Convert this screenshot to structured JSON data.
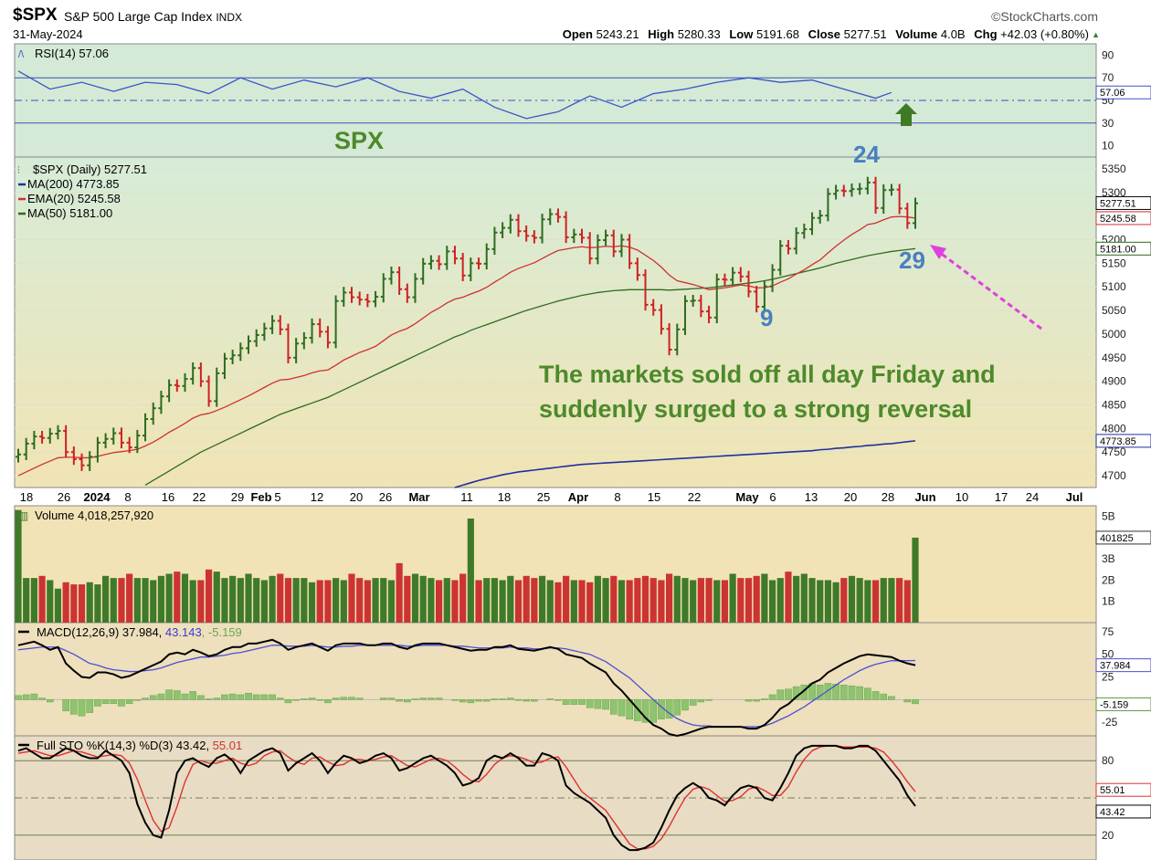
{
  "header": {
    "symbol": "$SPX",
    "name": "S&P 500 Large Cap Index",
    "exchange": "INDX",
    "date": "31-May-2024",
    "brand": "©StockCharts.com",
    "open_label": "Open",
    "open": "5243.21",
    "high_label": "High",
    "high": "5280.33",
    "low_label": "Low",
    "low": "5191.68",
    "close_label": "Close",
    "close": "5277.51",
    "volume_label": "Volume",
    "volume": "4.0B",
    "chg_label": "Chg",
    "chg": "+42.03 (+0.80%)"
  },
  "annotations": {
    "spx": "SPX",
    "n24": "24",
    "n29": "29",
    "n9": "9",
    "text_line1": "The markets sold off all day Friday and",
    "text_line2": "suddenly surged to a strong reversal"
  },
  "colors": {
    "up_bar": "#2e6b1f",
    "down_bar": "#cc2222",
    "ma200": "#1f2fa0",
    "ema20": "#d03030",
    "ma50": "#2e6b1f",
    "rsi": "#3a55c8",
    "annotation_green": "#4d8a2a",
    "annotation_blue": "#4a7fc0",
    "arrow_pink": "#e040e0"
  },
  "chart_data": [
    {
      "panel": "rsi",
      "type": "line",
      "legend": "RSI(14) 57.06",
      "last_label": "57.06",
      "ticks": [
        "90",
        "70",
        "50",
        "30",
        "10"
      ],
      "ylim": [
        0,
        100
      ],
      "levels": [
        70,
        30
      ],
      "x": [
        0,
        4,
        8,
        12,
        16,
        20,
        24,
        28,
        32,
        36,
        40,
        44,
        48,
        52,
        56,
        60,
        64,
        68,
        72,
        76,
        80,
        84,
        88,
        92,
        96,
        100,
        104,
        108,
        110
      ],
      "values": [
        76,
        60,
        66,
        58,
        66,
        64,
        56,
        70,
        60,
        68,
        62,
        70,
        58,
        52,
        60,
        44,
        34,
        40,
        54,
        44,
        56,
        60,
        66,
        70,
        66,
        68,
        60,
        52,
        57
      ]
    },
    {
      "panel": "price",
      "type": "candlestick",
      "legend": [
        "$SPX (Daily) 5277.51",
        "MA(200) 4773.85",
        "EMA(20) 5245.58",
        "MA(50) 5181.00"
      ],
      "ticks": [
        "5350",
        "5300",
        "5250",
        "5200",
        "5150",
        "5100",
        "5050",
        "5000",
        "4950",
        "4900",
        "4850",
        "4800",
        "4750",
        "4700"
      ],
      "ylim": [
        4675,
        5375
      ],
      "tag_labels": [
        "5277.51",
        "5245.58",
        "5181.00",
        "4773.85"
      ],
      "x_ticks": [
        "18",
        "26",
        "2024",
        "8",
        "16",
        "22",
        "29",
        "Feb",
        "5",
        "12",
        "20",
        "26",
        "Mar",
        "11",
        "18",
        "25",
        "Apr",
        "8",
        "15",
        "22",
        "May",
        "6",
        "13",
        "20",
        "28",
        "Jun",
        "10",
        "17",
        "24",
        "Jul"
      ],
      "close": [
        4745,
        4768,
        4783,
        4780,
        4789,
        4795,
        4750,
        4735,
        4722,
        4740,
        4770,
        4778,
        4790,
        4770,
        4760,
        4785,
        4820,
        4843,
        4868,
        4892,
        4890,
        4905,
        4928,
        4900,
        4858,
        4917,
        4948,
        4955,
        4970,
        4985,
        4998,
        5012,
        5028,
        5010,
        4950,
        4980,
        4992,
        5021,
        5005,
        4982,
        5070,
        5088,
        5078,
        5073,
        5069,
        5079,
        5117,
        5131,
        5095,
        5078,
        5117,
        5149,
        5155,
        5148,
        5175,
        5160,
        5124,
        5150,
        5149,
        5180,
        5215,
        5225,
        5242,
        5218,
        5208,
        5204,
        5243,
        5254,
        5248,
        5205,
        5211,
        5204,
        5160,
        5199,
        5209,
        5175,
        5200,
        5150,
        5125,
        5062,
        5051,
        5011,
        4967,
        5010,
        5070,
        5071,
        5048,
        5035,
        5116,
        5115,
        5130,
        5122,
        5090,
        5058,
        5101,
        5136,
        5187,
        5181,
        5214,
        5222,
        5246,
        5251,
        5297,
        5304,
        5303,
        5307,
        5308,
        5321,
        5267,
        5305,
        5306,
        5266,
        5235,
        5277
      ],
      "ema20": [
        4700,
        4708,
        4716,
        4724,
        4731,
        4738,
        4739,
        4739,
        4738,
        4738,
        4741,
        4745,
        4749,
        4751,
        4753,
        4756,
        4763,
        4771,
        4781,
        4792,
        4801,
        4811,
        4822,
        4829,
        4832,
        4838,
        4845,
        4853,
        4861,
        4869,
        4878,
        4887,
        4896,
        4903,
        4904,
        4908,
        4912,
        4918,
        4922,
        4924,
        4934,
        4945,
        4953,
        4961,
        4967,
        4974,
        4986,
        4998,
        5006,
        5012,
        5022,
        5034,
        5046,
        5055,
        5066,
        5074,
        5078,
        5085,
        5091,
        5099,
        5110,
        5120,
        5131,
        5139,
        5145,
        5151,
        5160,
        5169,
        5177,
        5180,
        5183,
        5185,
        5183,
        5184,
        5186,
        5185,
        5187,
        5184,
        5178,
        5167,
        5156,
        5142,
        5125,
        5113,
        5109,
        5105,
        5100,
        5094,
        5096,
        5098,
        5101,
        5104,
        5102,
        5098,
        5098,
        5102,
        5110,
        5117,
        5127,
        5136,
        5147,
        5157,
        5172,
        5186,
        5199,
        5211,
        5221,
        5232,
        5235,
        5242,
        5248,
        5249,
        5248,
        5245.58
      ],
      "ma50": [
        4530,
        4540,
        4550,
        4560,
        4570,
        4580,
        4588,
        4596,
        4604,
        4612,
        4620,
        4630,
        4640,
        4650,
        4660,
        4670,
        4680,
        4690,
        4700,
        4710,
        4720,
        4730,
        4740,
        4750,
        4758,
        4766,
        4774,
        4782,
        4790,
        4798,
        4806,
        4814,
        4822,
        4830,
        4836,
        4842,
        4848,
        4854,
        4860,
        4866,
        4874,
        4882,
        4890,
        4898,
        4906,
        4914,
        4922,
        4930,
        4938,
        4946,
        4954,
        4962,
        4970,
        4978,
        4986,
        4994,
        5000,
        5008,
        5014,
        5020,
        5026,
        5032,
        5038,
        5044,
        5050,
        5055,
        5060,
        5065,
        5070,
        5074,
        5078,
        5082,
        5085,
        5088,
        5090,
        5092,
        5093,
        5094,
        5094,
        5094,
        5094,
        5094,
        5093,
        5094,
        5095,
        5096,
        5097,
        5098,
        5100,
        5102,
        5104,
        5106,
        5108,
        5110,
        5113,
        5116,
        5120,
        5124,
        5128,
        5132,
        5136,
        5140,
        5145,
        5150,
        5154,
        5158,
        5162,
        5166,
        5169,
        5172,
        5175,
        5177,
        5179,
        5181
      ],
      "ma200": [
        4400,
        4405,
        4410,
        4415,
        4420,
        4425,
        4430,
        4435,
        4440,
        4445,
        4450,
        4455,
        4460,
        4465,
        4470,
        4475,
        4480,
        4485,
        4490,
        4495,
        4500,
        4505,
        4510,
        4515,
        4520,
        4525,
        4530,
        4535,
        4540,
        4545,
        4550,
        4555,
        4560,
        4565,
        4570,
        4575,
        4580,
        4585,
        4590,
        4595,
        4600,
        4605,
        4610,
        4615,
        4620,
        4625,
        4630,
        4635,
        4640,
        4645,
        4650,
        4655,
        4660,
        4665,
        4670,
        4675,
        4680,
        4685,
        4690,
        4694,
        4698,
        4702,
        4705,
        4708,
        4710,
        4712,
        4714,
        4716,
        4718,
        4720,
        4722,
        4724,
        4725,
        4726,
        4727,
        4728,
        4729,
        4730,
        4731,
        4732,
        4733,
        4734,
        4735,
        4736,
        4737,
        4738,
        4739,
        4740,
        4741,
        4742,
        4743,
        4744,
        4745,
        4746,
        4747,
        4748,
        4749,
        4750,
        4751,
        4752,
        4753,
        4755,
        4756,
        4758,
        4759,
        4761,
        4762,
        4764,
        4765,
        4767,
        4768,
        4770,
        4772,
        4773.85
      ]
    },
    {
      "panel": "volume",
      "type": "bar",
      "legend": "Volume 4,018,257,920",
      "ticks": [
        "5B",
        "3B",
        "2B",
        "1B"
      ],
      "ylim": [
        0,
        5.5
      ],
      "last_label": "401825",
      "values": [
        5.3,
        2.1,
        2.1,
        2.2,
        2.0,
        1.6,
        1.9,
        1.8,
        1.8,
        1.9,
        1.8,
        2.2,
        2.1,
        2.1,
        2.3,
        2.1,
        2.1,
        2.0,
        2.2,
        2.3,
        2.4,
        2.3,
        2.0,
        2.0,
        2.5,
        2.4,
        2.1,
        2.2,
        2.1,
        2.3,
        2.1,
        2.0,
        2.2,
        2.3,
        2.1,
        2.1,
        2.1,
        1.9,
        2.0,
        2.0,
        2.1,
        2.0,
        2.3,
        2.1,
        2.0,
        2.1,
        2.1,
        2.0,
        2.8,
        2.2,
        2.3,
        2.2,
        2.1,
        2.0,
        2.1,
        2.0,
        2.3,
        4.9,
        2.0,
        2.1,
        2.1,
        2.0,
        2.2,
        2.0,
        2.2,
        2.1,
        2.2,
        2.0,
        1.9,
        2.2,
        2.0,
        2.0,
        1.9,
        2.2,
        2.1,
        2.2,
        2.0,
        2.0,
        2.1,
        2.2,
        2.1,
        2.0,
        2.3,
        2.2,
        2.1,
        2.0,
        2.1,
        2.1,
        2.0,
        2.0,
        2.3,
        2.1,
        2.1,
        2.2,
        2.3,
        2.0,
        2.1,
        2.4,
        2.2,
        2.3,
        2.1,
        2.0,
        2.0,
        1.9,
        2.1,
        2.2,
        2.1,
        2.0,
        2.0,
        2.1,
        2.1,
        2.1,
        2.0,
        4.0
      ]
    },
    {
      "panel": "macd",
      "type": "line",
      "legend": "MACD(12,26,9) 37.984, 43.143, -5.159",
      "legend_parts": [
        "MACD(12,26,9) 37.984, ",
        "43.143",
        ", -5.159"
      ],
      "ticks": [
        "75",
        "50",
        "25",
        "-25"
      ],
      "ylim": [
        -40,
        85
      ],
      "tag_labels": [
        "37.984",
        "-5.159"
      ],
      "macd": [
        60,
        62,
        64,
        60,
        55,
        58,
        40,
        32,
        25,
        24,
        30,
        30,
        28,
        24,
        26,
        30,
        34,
        38,
        42,
        50,
        52,
        50,
        55,
        52,
        48,
        50,
        55,
        58,
        58,
        62,
        62,
        64,
        66,
        62,
        55,
        58,
        60,
        62,
        58,
        54,
        60,
        62,
        62,
        62,
        60,
        60,
        62,
        62,
        58,
        56,
        60,
        62,
        62,
        62,
        60,
        58,
        56,
        54,
        55,
        55,
        58,
        58,
        60,
        56,
        55,
        54,
        56,
        58,
        56,
        50,
        48,
        46,
        40,
        35,
        30,
        18,
        10,
        0,
        -10,
        -20,
        -28,
        -32,
        -38,
        -40,
        -38,
        -35,
        -32,
        -30,
        -30,
        -30,
        -30,
        -30,
        -32,
        -32,
        -28,
        -20,
        -10,
        -5,
        3,
        10,
        18,
        22,
        30,
        35,
        40,
        44,
        48,
        50,
        49,
        48,
        47,
        43,
        40,
        37.984
      ],
      "signal": [
        55,
        56,
        57,
        58,
        58,
        58,
        54,
        50,
        45,
        40,
        38,
        35,
        33,
        32,
        31,
        31,
        32,
        33,
        35,
        38,
        41,
        43,
        45,
        47,
        47,
        48,
        49,
        51,
        52,
        54,
        56,
        58,
        60,
        60,
        59,
        59,
        59,
        60,
        59,
        58,
        58,
        59,
        59,
        60,
        60,
        60,
        60,
        60,
        60,
        59,
        59,
        60,
        60,
        60,
        60,
        59,
        59,
        58,
        57,
        57,
        57,
        57,
        58,
        57,
        57,
        56,
        56,
        57,
        57,
        56,
        54,
        52,
        50,
        46,
        42,
        36,
        30,
        24,
        16,
        8,
        0,
        -8,
        -15,
        -21,
        -25,
        -28,
        -29,
        -29,
        -30,
        -30,
        -30,
        -30,
        -30,
        -30,
        -29,
        -26,
        -22,
        -18,
        -13,
        -8,
        -2,
        4,
        10,
        16,
        22,
        27,
        32,
        36,
        39,
        41,
        43,
        43,
        43,
        43.143
      ]
    },
    {
      "panel": "sto",
      "type": "line",
      "legend": "Full STO %K(14,3) %D(3) 43.42, 55.01",
      "legend_parts": [
        "Full STO %K(14,3) %D(3) 43.42, ",
        "55.01"
      ],
      "ticks": [
        "80",
        "20"
      ],
      "ylim": [
        0,
        100
      ],
      "levels": [
        80,
        50,
        20
      ],
      "tag_labels": [
        "55.01",
        "43.42"
      ],
      "k": [
        88,
        90,
        86,
        82,
        82,
        86,
        90,
        88,
        84,
        82,
        82,
        88,
        84,
        80,
        70,
        45,
        30,
        20,
        18,
        40,
        70,
        80,
        82,
        78,
        75,
        82,
        85,
        80,
        70,
        80,
        84,
        88,
        90,
        86,
        72,
        78,
        82,
        86,
        80,
        70,
        78,
        84,
        82,
        78,
        80,
        84,
        86,
        82,
        72,
        74,
        78,
        82,
        84,
        80,
        76,
        70,
        60,
        62,
        66,
        80,
        84,
        82,
        86,
        82,
        76,
        76,
        86,
        84,
        80,
        60,
        54,
        50,
        46,
        40,
        34,
        20,
        12,
        8,
        8,
        10,
        14,
        26,
        40,
        52,
        58,
        62,
        58,
        50,
        48,
        44,
        52,
        58,
        60,
        58,
        50,
        48,
        58,
        70,
        84,
        90,
        92,
        92,
        92,
        92,
        90,
        90,
        92,
        92,
        88,
        80,
        72,
        64,
        52,
        43.42
      ],
      "d": [
        86,
        87,
        88,
        86,
        84,
        84,
        86,
        88,
        87,
        85,
        83,
        84,
        85,
        84,
        78,
        65,
        48,
        32,
        23,
        26,
        43,
        63,
        77,
        80,
        78,
        78,
        80,
        82,
        78,
        76,
        78,
        84,
        87,
        88,
        83,
        79,
        77,
        82,
        83,
        79,
        76,
        77,
        81,
        81,
        80,
        81,
        83,
        84,
        80,
        76,
        75,
        78,
        81,
        82,
        80,
        75,
        69,
        64,
        63,
        69,
        77,
        82,
        84,
        83,
        81,
        78,
        79,
        82,
        83,
        75,
        65,
        55,
        50,
        45,
        40,
        31,
        22,
        13,
        9,
        9,
        11,
        17,
        27,
        39,
        50,
        57,
        59,
        57,
        52,
        47,
        48,
        51,
        57,
        59,
        56,
        52,
        52,
        59,
        71,
        81,
        88,
        91,
        92,
        92,
        91,
        91,
        91,
        91,
        90,
        87,
        80,
        72,
        63,
        55.01
      ]
    }
  ]
}
